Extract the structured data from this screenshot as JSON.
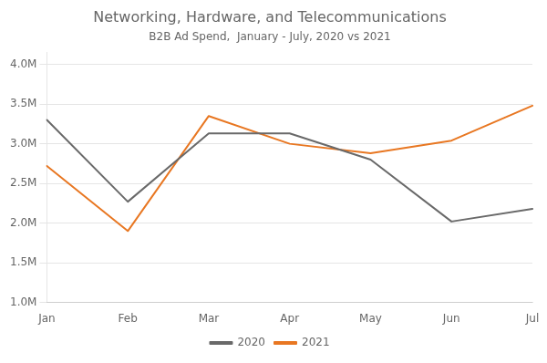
{
  "chart_data": {
    "type": "line",
    "title": "Networking, Hardware, and Telecommunications",
    "subtitle": "B2B Ad Spend,  January - July, 2020 vs 2021",
    "categories": [
      "Jan",
      "Feb",
      "Mar",
      "Apr",
      "May",
      "Jun",
      "Jul"
    ],
    "series": [
      {
        "name": "2020",
        "color": "#696969",
        "values": [
          3.3,
          2.27,
          3.13,
          3.13,
          2.8,
          2.02,
          2.18
        ]
      },
      {
        "name": "2021",
        "color": "#E87722",
        "values": [
          2.72,
          1.9,
          3.35,
          3.0,
          2.88,
          3.04,
          3.48
        ]
      }
    ],
    "ylim": [
      1.0,
      4.15
    ],
    "yticks": [
      {
        "value": 1.0,
        "label": "1.0M"
      },
      {
        "value": 1.5,
        "label": "1.5M"
      },
      {
        "value": 2.0,
        "label": "2.0M"
      },
      {
        "value": 2.5,
        "label": "2.5M"
      },
      {
        "value": 3.0,
        "label": "3.0M"
      },
      {
        "value": 3.5,
        "label": "3.5M"
      },
      {
        "value": 4.0,
        "label": "4.0M"
      }
    ],
    "grid": true,
    "legend": "bottom"
  }
}
